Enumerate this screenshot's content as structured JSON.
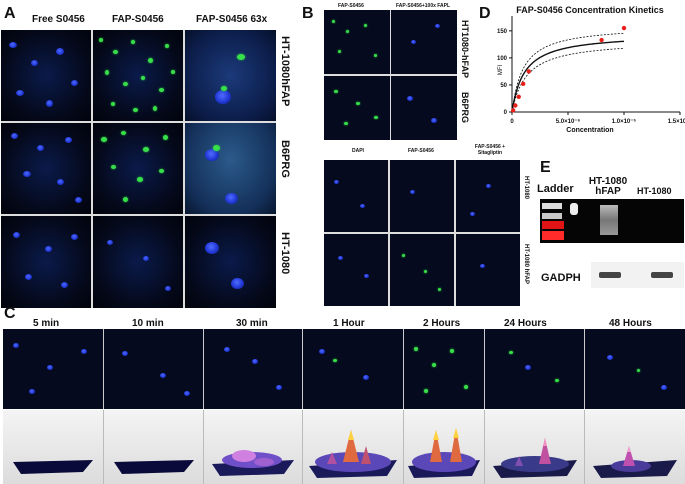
{
  "panels": {
    "A": {
      "label": "A",
      "columns": [
        "Free S0456",
        "FAP-S0456",
        "FAP-S0456 63x"
      ],
      "rows": [
        "HT-1080hFAP",
        "B6PRG",
        "HT-1080"
      ]
    },
    "B": {
      "label": "B",
      "top_columns": [
        "FAP-S0456",
        "FAP-S0456+100x FAPL"
      ],
      "top_rows": [
        "HT1080-hFAP",
        "B6PRG"
      ],
      "bottom_columns": [
        "DAPI",
        "FAP-S0456",
        "FAP-S0456 + Sitagliptin"
      ],
      "bottom_rows": [
        "HT-1080",
        "HT-1080 hFAP"
      ]
    },
    "C": {
      "label": "C",
      "timepoints": [
        "5 min",
        "10 min",
        "30 min",
        "1 Hour",
        "2 Hours",
        "24 Hours",
        "48 Hours"
      ]
    },
    "D": {
      "label": "D"
    },
    "E": {
      "label": "E",
      "lanes": [
        "Ladder",
        "HT-1080 hFAP",
        "HT-1080"
      ],
      "loading_label": "GADPH"
    }
  },
  "chart_data": {
    "type": "scatter",
    "title": "FAP-S0456 Concentration Kinetics",
    "xlabel": "Concentration",
    "ylabel": "MFI",
    "xlim": [
      0,
      1.5e-05
    ],
    "ylim": [
      0,
      170
    ],
    "xticks": [
      0,
      5e-06,
      1e-05,
      1.5e-05
    ],
    "xtick_labels": [
      "0",
      "5.0×10⁻⁶",
      "1.0×10⁻⁵",
      "1.5×10⁻⁵"
    ],
    "yticks": [
      0,
      50,
      100,
      150
    ],
    "ytick_labels": [
      "0",
      "50",
      "100",
      "150"
    ],
    "points": [
      {
        "x": 1e-07,
        "y": 3
      },
      {
        "x": 3e-07,
        "y": 12
      },
      {
        "x": 6e-07,
        "y": 28
      },
      {
        "x": 1e-06,
        "y": 52
      },
      {
        "x": 1.5e-06,
        "y": 75
      },
      {
        "x": 8e-06,
        "y": 133
      },
      {
        "x": 1e-05,
        "y": 155
      }
    ],
    "fit": {
      "bmax": 145,
      "kd": 1.1e-06
    },
    "band_upper": {
      "bmax": 160,
      "kd": 1e-06
    },
    "band_lower": {
      "bmax": 133,
      "kd": 1.3e-06
    },
    "point_color": "#e8201a",
    "grid": false
  }
}
